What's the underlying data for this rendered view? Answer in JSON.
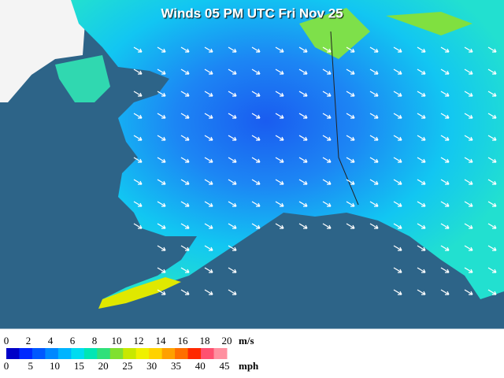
{
  "title": "Winds 05 PM UTC Fri Nov 25",
  "legend": {
    "ms_labels": [
      "0",
      "2",
      "4",
      "6",
      "8",
      "10",
      "12",
      "14",
      "16",
      "18",
      "20"
    ],
    "ms_unit": "m/s",
    "mph_labels": [
      "0",
      "5",
      "10",
      "15",
      "20",
      "25",
      "30",
      "35",
      "40",
      "45"
    ],
    "mph_unit": "mph",
    "colors": [
      "#0000c8",
      "#0028ff",
      "#0058ff",
      "#0088ff",
      "#00b4ff",
      "#00dcf0",
      "#00e6b4",
      "#30e07a",
      "#80e030",
      "#c8e800",
      "#f0f000",
      "#ffd200",
      "#ffa000",
      "#ff6e00",
      "#ff2800",
      "#ff5070",
      "#ff90a0"
    ]
  }
}
